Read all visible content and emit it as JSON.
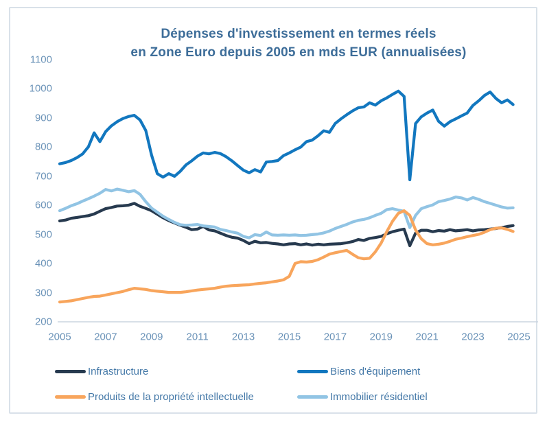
{
  "colors": {
    "title_text": "#3d6d99",
    "tick_text": "#6b93b8",
    "legend_text": "#4579a8",
    "card_border": "#d9e1e9",
    "baseline": "#cbd6df"
  },
  "chart_data": {
    "type": "line",
    "title_line1": "Dépenses d'investissement en termes réels",
    "title_line2": "en Zone Euro depuis 2005 en mds EUR (annualisées)",
    "xlabel": "",
    "ylabel": "",
    "x_ticks": [
      2005,
      2007,
      2009,
      2011,
      2013,
      2015,
      2017,
      2019,
      2021,
      2023,
      2025
    ],
    "y_ticks": [
      1100,
      1000,
      900,
      800,
      700,
      600,
      500,
      400,
      300,
      200
    ],
    "ylim": [
      200,
      1100
    ],
    "xlim": [
      2005,
      2025
    ],
    "grid": "baseline-only",
    "legend_position": "bottom",
    "x_start": 2005.0,
    "x_step": 0.25,
    "x_unit": "year (quarterly data)",
    "series": [
      {
        "key": "infrastructure",
        "name": "Infrastructure",
        "color": "#273a4f",
        "values": [
          546,
          549,
          555,
          558,
          561,
          564,
          570,
          579,
          588,
          592,
          597,
          598,
          600,
          606,
          596,
          589,
          581,
          569,
          557,
          547,
          539,
          531,
          524,
          516,
          518,
          527,
          515,
          512,
          504,
          496,
          490,
          487,
          479,
          468,
          476,
          471,
          472,
          469,
          467,
          464,
          467,
          468,
          464,
          467,
          463,
          466,
          464,
          466,
          467,
          468,
          471,
          475,
          482,
          479,
          486,
          489,
          493,
          502,
          509,
          514,
          518,
          461,
          504,
          514,
          514,
          509,
          513,
          511,
          516,
          512,
          514,
          516,
          512,
          515,
          516,
          518,
          520,
          523,
          527,
          530
        ]
      },
      {
        "key": "immobilier-residentiel",
        "name": "Immobilier résidentiel",
        "color": "#91c4e4",
        "values": [
          581,
          589,
          598,
          605,
          614,
          622,
          631,
          641,
          654,
          649,
          655,
          651,
          646,
          650,
          637,
          612,
          590,
          576,
          562,
          551,
          541,
          533,
          531,
          532,
          534,
          529,
          527,
          525,
          517,
          513,
          508,
          504,
          493,
          488,
          499,
          496,
          508,
          498,
          497,
          498,
          497,
          498,
          496,
          497,
          499,
          501,
          505,
          511,
          520,
          527,
          534,
          542,
          548,
          551,
          557,
          565,
          572,
          585,
          588,
          583,
          579,
          523,
          565,
          588,
          595,
          601,
          612,
          616,
          621,
          628,
          625,
          618,
          626,
          620,
          612,
          606,
          600,
          594,
          590,
          591
        ]
      },
      {
        "key": "produits-propriete-intellectuelle",
        "name": "Produits de la propriété intellectuelle",
        "color": "#f8a55c",
        "values": [
          268,
          270,
          272,
          276,
          280,
          284,
          287,
          288,
          292,
          296,
          300,
          304,
          310,
          315,
          313,
          311,
          307,
          305,
          303,
          301,
          301,
          301,
          303,
          306,
          309,
          311,
          313,
          315,
          319,
          322,
          324,
          325,
          326,
          327,
          330,
          332,
          334,
          337,
          340,
          344,
          356,
          400,
          406,
          405,
          407,
          413,
          422,
          432,
          437,
          441,
          445,
          432,
          420,
          416,
          418,
          440,
          470,
          510,
          545,
          572,
          581,
          565,
          515,
          485,
          468,
          464,
          466,
          470,
          476,
          483,
          487,
          492,
          496,
          500,
          507,
          516,
          521,
          522,
          517,
          510
        ]
      },
      {
        "key": "biens-equipement",
        "name": "Biens d'équipement",
        "color": "#1277bf",
        "values": [
          742,
          746,
          753,
          763,
          776,
          800,
          848,
          818,
          852,
          872,
          886,
          897,
          904,
          908,
          892,
          856,
          772,
          708,
          696,
          708,
          699,
          716,
          738,
          752,
          768,
          779,
          776,
          781,
          777,
          766,
          752,
          736,
          720,
          711,
          722,
          714,
          748,
          750,
          753,
          770,
          779,
          790,
          799,
          818,
          823,
          838,
          855,
          850,
          880,
          896,
          910,
          923,
          934,
          937,
          951,
          943,
          958,
          968,
          980,
          991,
          973,
          687,
          880,
          903,
          916,
          926,
          888,
          871,
          886,
          896,
          906,
          916,
          942,
          958,
          976,
          988,
          966,
          951,
          961,
          945
        ]
      }
    ],
    "legend_order": [
      "infrastructure",
      "biens-equipement",
      "produits-propriete-intellectuelle",
      "immobilier-residentiel"
    ]
  }
}
